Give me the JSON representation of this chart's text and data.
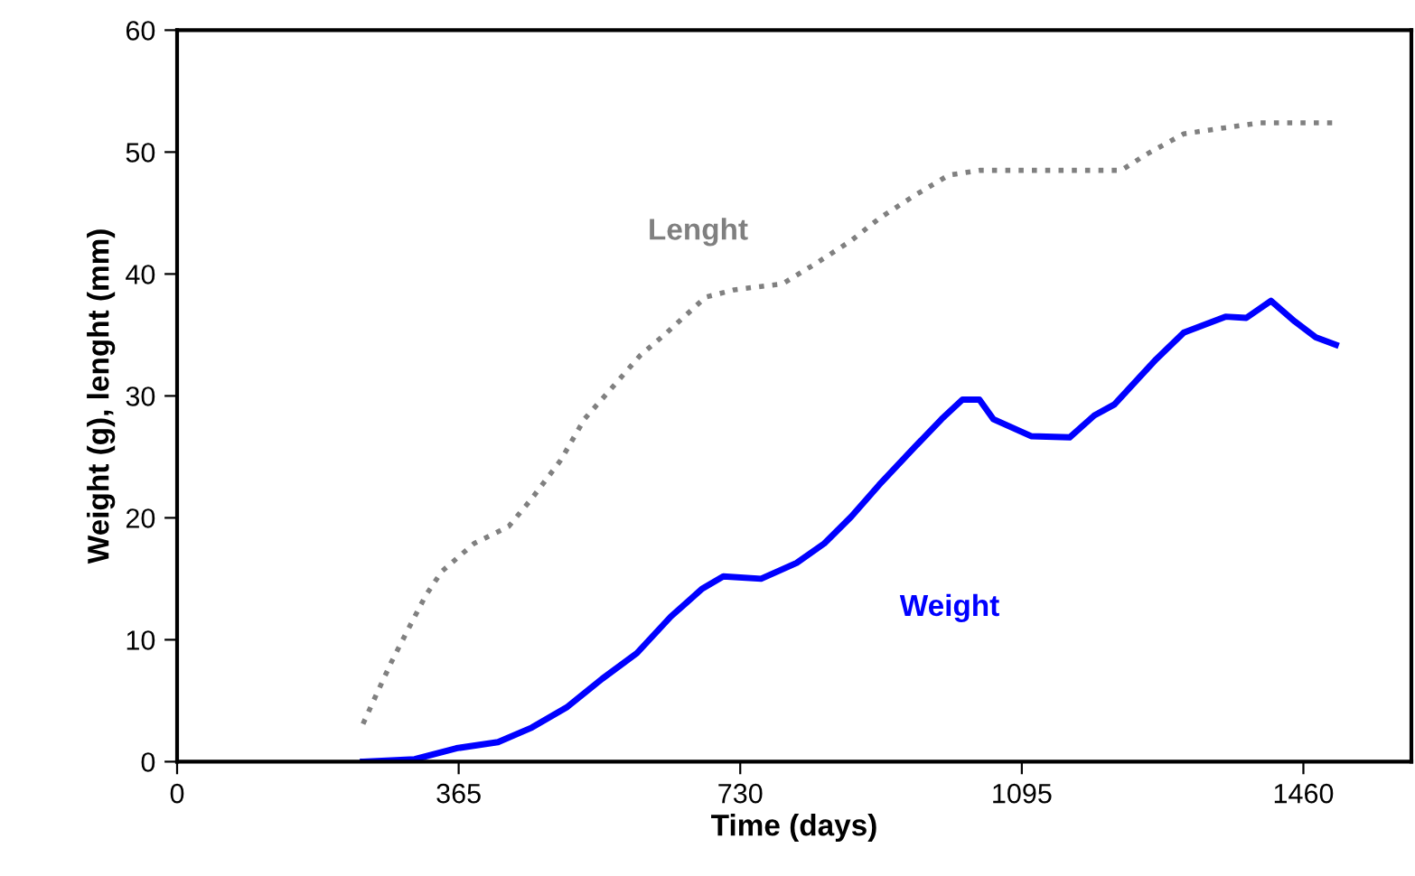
{
  "chart_data": {
    "type": "line",
    "xlabel": "Time (days)",
    "ylabel": "Weight (g), lenght (mm)",
    "xlim": [
      0,
      1600
    ],
    "xticks": [
      0,
      365,
      730,
      1095,
      1460
    ],
    "ylim": [
      0,
      60
    ],
    "yticks": [
      0,
      10,
      20,
      30,
      40,
      50,
      60
    ],
    "grid": false,
    "legend": false,
    "series": [
      {
        "name": "Lenght",
        "color": "#808080",
        "line_style": "dotted",
        "x": [
          241,
          259,
          278,
          299,
          322,
          343,
          385,
          430,
          460,
          497,
          528,
          560,
          600,
          635,
          685,
          722,
          785,
          829,
          873,
          911,
          955,
          1000,
          1040,
          1224,
          1256,
          1305,
          1359,
          1404,
          1498
        ],
        "values": [
          3.1,
          5.6,
          8.2,
          10.8,
          13.6,
          15.6,
          17.9,
          19.3,
          21.6,
          24.7,
          28.1,
          30.4,
          33.3,
          35.2,
          38.1,
          38.7,
          39.2,
          40.9,
          42.7,
          44.6,
          46.4,
          48.1,
          48.5,
          48.5,
          49.8,
          51.5,
          52.0,
          52.4,
          52.4
        ]
      },
      {
        "name": "Weight",
        "color": "#0000ff",
        "line_style": "solid",
        "x": [
          241,
          308,
          362,
          416,
          460,
          506,
          551,
          596,
          640,
          681,
          708,
          757,
          803,
          839,
          874,
          910,
          956,
          991,
          1018,
          1040,
          1058,
          1107,
          1157,
          1189,
          1215,
          1269,
          1305,
          1359,
          1386,
          1418,
          1449,
          1476,
          1502
        ],
        "values": [
          0,
          0.2,
          1.1,
          1.6,
          2.8,
          4.5,
          6.8,
          8.9,
          11.9,
          14.2,
          15.2,
          15.0,
          16.3,
          17.9,
          20.1,
          22.7,
          25.8,
          28.1,
          29.7,
          29.7,
          28.1,
          26.7,
          26.6,
          28.4,
          29.3,
          33.0,
          35.2,
          36.5,
          36.4,
          37.8,
          36.1,
          34.8,
          34.2
        ]
      }
    ]
  }
}
